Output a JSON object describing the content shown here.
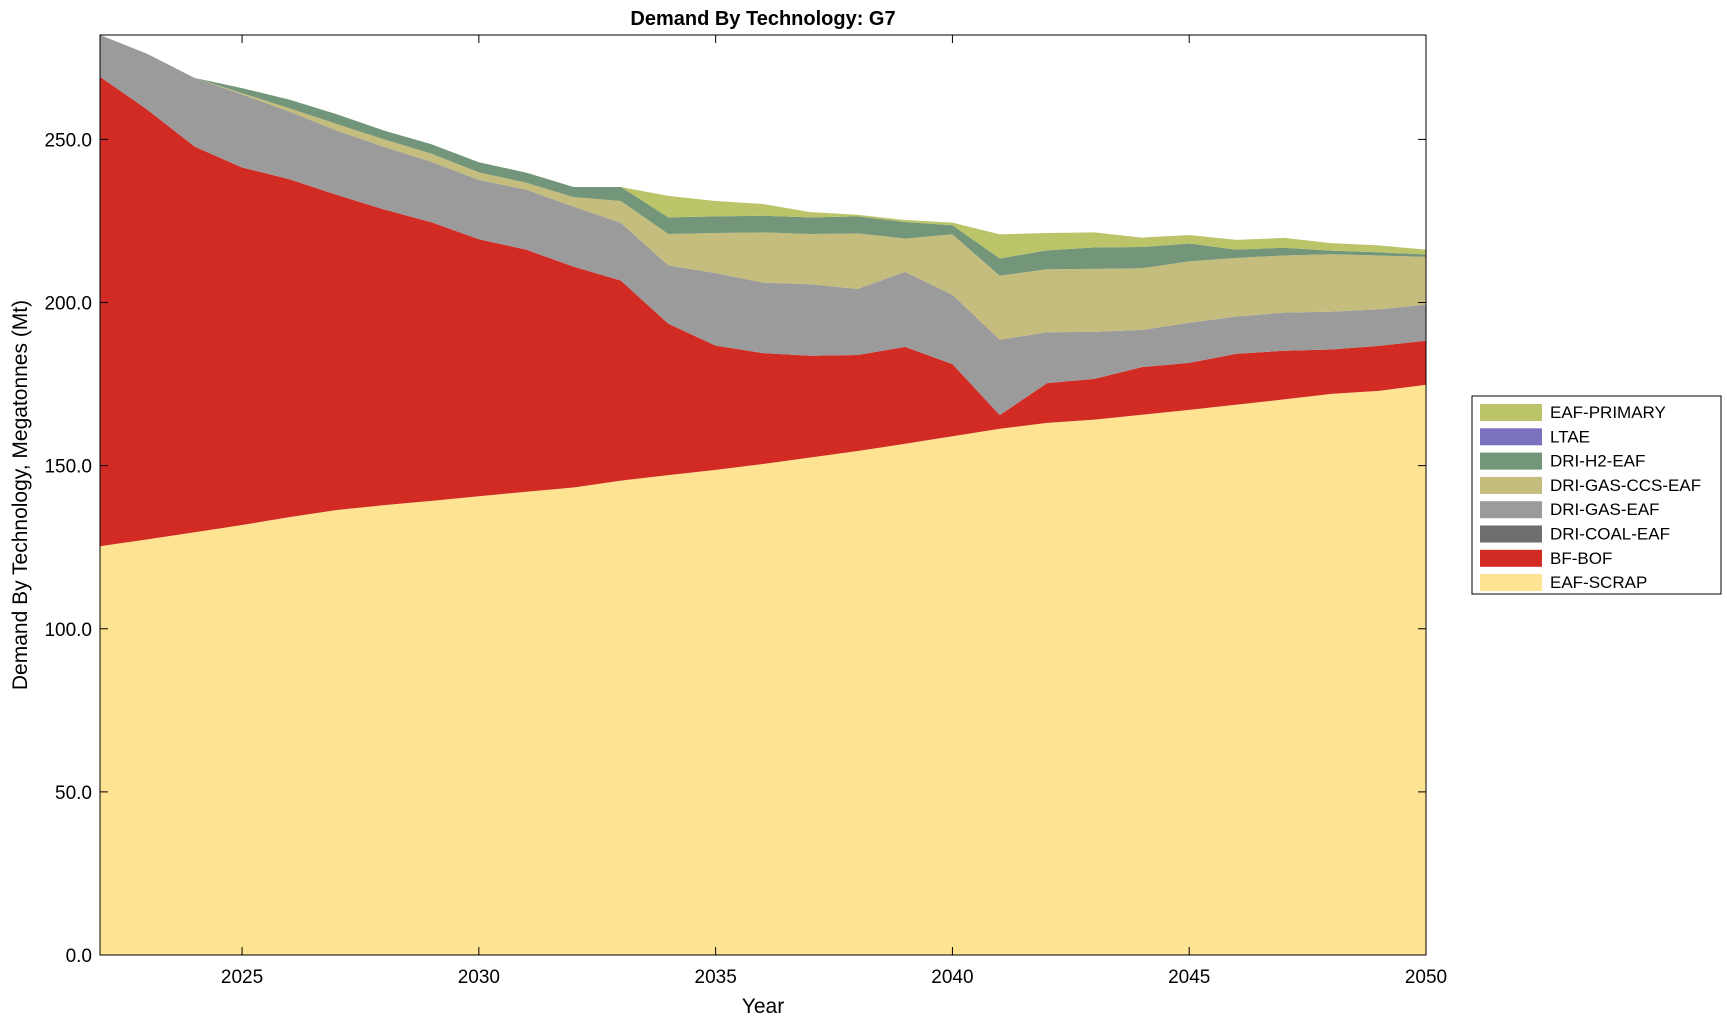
{
  "chart_data": {
    "type": "area",
    "stacked": true,
    "title": "Demand By Technology: G7",
    "xlabel": "Year",
    "ylabel": "Demand By Technology, Megatonnes (Mt)",
    "xlim": [
      2022,
      2050
    ],
    "ylim": [
      0,
      282
    ],
    "xticks": [
      2025,
      2030,
      2035,
      2040,
      2045,
      2050
    ],
    "yticks": [
      0,
      50,
      100,
      150,
      200,
      250
    ],
    "yticks_labels": [
      "0.0",
      "50.0",
      "100.0",
      "150.0",
      "200.0",
      "250.0"
    ],
    "grid": false,
    "legend_position": "right",
    "x": [
      2022,
      2023,
      2024,
      2025,
      2026,
      2027,
      2028,
      2029,
      2030,
      2031,
      2032,
      2033,
      2034,
      2035,
      2036,
      2037,
      2038,
      2039,
      2040,
      2041,
      2042,
      2043,
      2044,
      2045,
      2046,
      2047,
      2048,
      2049,
      2050
    ],
    "series": [
      {
        "name": "EAF-SCRAP",
        "color": "#fde392",
        "values": [
          125.3,
          127.4,
          129.6,
          131.8,
          134.2,
          136.4,
          137.9,
          139.2,
          140.6,
          142.0,
          143.3,
          145.4,
          147.1,
          148.7,
          150.5,
          152.5,
          154.5,
          156.7,
          159.0,
          161.3,
          163.1,
          164.1,
          165.6,
          167.1,
          168.7,
          170.3,
          172.0,
          172.9,
          174.8
        ]
      },
      {
        "name": "BF-BOF",
        "color": "#d22b24",
        "values": [
          143.9,
          131.7,
          118.2,
          109.6,
          103.6,
          96.6,
          90.6,
          85.4,
          78.8,
          74.2,
          67.7,
          61.3,
          46.4,
          38.1,
          34.0,
          31.2,
          29.4,
          29.7,
          22.1,
          4.2,
          12.2,
          12.5,
          14.6,
          14.4,
          15.6,
          14.9,
          13.6,
          13.8,
          13.5
        ]
      },
      {
        "name": "DRI-COAL-EAF",
        "color": "#6e6e6e",
        "values": [
          0,
          0,
          0,
          0,
          0,
          0,
          0,
          0,
          0,
          0,
          0,
          0,
          0,
          0,
          0,
          0,
          0,
          0,
          0,
          0,
          0,
          0,
          0,
          0,
          0,
          0,
          0,
          0,
          0
        ]
      },
      {
        "name": "DRI-GAS-EAF",
        "color": "#9b9b9b",
        "values": [
          12.8,
          17.1,
          21.0,
          22.4,
          20.7,
          19.7,
          19.2,
          18.5,
          18.2,
          18.4,
          18.4,
          17.7,
          17.9,
          22.2,
          21.6,
          21.9,
          20.3,
          23.0,
          21.3,
          23.1,
          15.6,
          14.4,
          11.4,
          12.3,
          11.4,
          11.7,
          11.6,
          11.2,
          11.1
        ]
      },
      {
        "name": "DRI-GAS-CCS-EAF",
        "color": "#c5bd7d",
        "values": [
          0,
          0,
          0,
          0.4,
          1.0,
          2.0,
          2.3,
          2.5,
          2.3,
          2.1,
          2.9,
          6.7,
          9.6,
          12.3,
          15.4,
          15.4,
          17.0,
          10.2,
          18.5,
          19.6,
          19.3,
          19.3,
          18.9,
          18.8,
          18.0,
          17.5,
          17.6,
          16.5,
          14.6
        ]
      },
      {
        "name": "DRI-H2-EAF",
        "color": "#73967a",
        "values": [
          0,
          0,
          0,
          1.5,
          2.7,
          3.0,
          2.7,
          2.9,
          3.1,
          3.1,
          3.1,
          4.3,
          5.1,
          5.1,
          5.1,
          5.1,
          5.2,
          5.1,
          2.8,
          5.3,
          5.8,
          6.6,
          6.5,
          5.5,
          2.5,
          2.4,
          1.1,
          1.0,
          0.7
        ]
      },
      {
        "name": "LTAE",
        "color": "#7b72bf",
        "values": [
          0,
          0,
          0,
          0,
          0,
          0,
          0,
          0,
          0,
          0,
          0,
          0,
          0,
          0,
          0,
          0,
          0,
          0,
          0,
          0,
          0,
          0,
          0,
          0,
          0,
          0,
          0,
          0,
          0
        ]
      },
      {
        "name": "EAF-PRIMARY",
        "color": "#bcc46a",
        "values": [
          0,
          0,
          0,
          0,
          0,
          0,
          0,
          0,
          0,
          0,
          0,
          0,
          6.6,
          4.7,
          3.6,
          1.6,
          0.5,
          0.6,
          0.8,
          7.4,
          5.3,
          4.6,
          2.9,
          2.6,
          3.0,
          3.0,
          2.3,
          2.1,
          1.5
        ]
      }
    ],
    "legend_order": [
      "EAF-PRIMARY",
      "LTAE",
      "DRI-H2-EAF",
      "DRI-GAS-CCS-EAF",
      "DRI-GAS-EAF",
      "DRI-COAL-EAF",
      "BF-BOF",
      "EAF-SCRAP"
    ]
  }
}
